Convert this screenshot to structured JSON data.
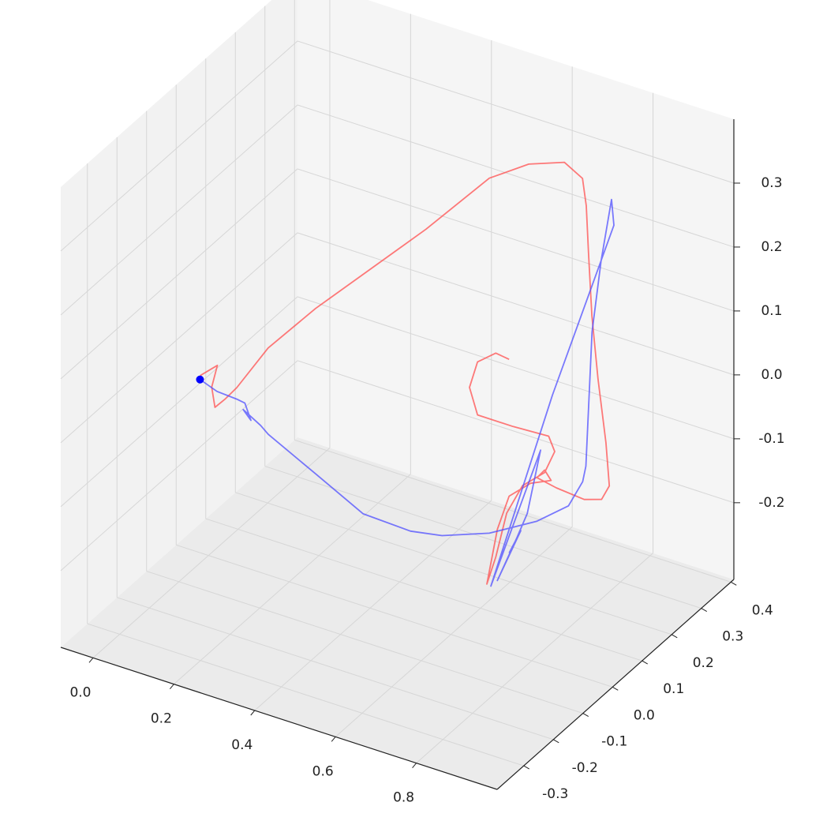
{
  "chart_data": {
    "type": "line3d",
    "xlim": [
      -0.08,
      1.0
    ],
    "ylim": [
      -0.39,
      0.41
    ],
    "zlim": [
      -0.32,
      0.4
    ],
    "xticks": [
      {
        "value": 0,
        "label": "0.0"
      },
      0.2,
      0.4,
      0.6,
      0.8
    ],
    "yticks": [
      -0.3,
      -0.2,
      -0.1,
      {
        "value": 0,
        "label": "0.0"
      },
      0.1,
      0.2,
      0.3,
      0.4
    ],
    "zticks": [
      -0.2,
      -0.1,
      {
        "value": 0,
        "label": "0.0"
      },
      0.1,
      0.2,
      0.3
    ],
    "grid": true,
    "series": [
      {
        "color": "#ff4d4d",
        "x": [
          -0.021,
          0.022,
          0.008,
          0.016,
          0.041,
          0.07,
          0.111,
          0.192,
          0.292,
          0.392,
          0.512,
          0.573,
          0.661,
          0.706,
          0.752,
          0.794,
          0.839,
          0.891,
          0.947,
          0.992,
          0.973,
          0.93,
          0.861,
          0.813,
          0.832,
          0.848,
          0.797,
          0.744,
          0.715,
          0.689,
          0.711,
          0.738,
          0.777,
          0.832,
          0.857,
          0.842,
          0.754,
          0.666,
          0.646,
          0.666,
          0.711,
          0.744
        ],
        "y": [
          0,
          0,
          0,
          0,
          0,
          0,
          0.05,
          0.1,
          0.15,
          0.2,
          0.25,
          0.3,
          0.3,
          0.3,
          0.25,
          0.2,
          0.15,
          0.1,
          0.05,
          0,
          0,
          0,
          0,
          0,
          0,
          0,
          0,
          0,
          0,
          0,
          0,
          0,
          0,
          0,
          0,
          0,
          0,
          0,
          0,
          0,
          0,
          0
        ],
        "z": [
          -0.043,
          -0.018,
          -0.055,
          -0.085,
          -0.067,
          -0.043,
          0.007,
          0.065,
          0.127,
          0.189,
          0.273,
          0.287,
          0.308,
          0.292,
          0.279,
          0.235,
          0.166,
          0.098,
          0.031,
          -0.007,
          -0.032,
          -0.041,
          -0.037,
          -0.031,
          -0.015,
          -0.028,
          -0.043,
          -0.074,
          -0.132,
          -0.223,
          -0.176,
          -0.102,
          -0.051,
          -0.019,
          0.019,
          0.04,
          0.037,
          0.037,
          0.076,
          0.12,
          0.143,
          0.14
        ]
      },
      {
        "color": "#4d4dff",
        "x": [
          -0.021,
          0.021,
          0.07,
          0.09,
          0.105,
          0.086,
          0.129,
          0.148,
          0.266,
          0.383,
          0.5,
          0.578,
          0.695,
          0.813,
          0.891,
          0.926,
          0.934,
          0.902,
          0.876,
          0.862,
          0.851,
          0.857,
          0.778,
          0.699,
          0.822,
          0.789,
          0.764,
          0.715,
          0.773,
          0.744
        ],
        "y": [
          0,
          0,
          0,
          0,
          0,
          0,
          0,
          0,
          0,
          0,
          0,
          0,
          0,
          0,
          0,
          0,
          0,
          0.05,
          0.1,
          0.15,
          0.2,
          0.2,
          0.1,
          0,
          0,
          0,
          0,
          0,
          0,
          0
        ],
        "z": [
          -0.049,
          -0.059,
          -0.061,
          -0.063,
          -0.087,
          -0.074,
          -0.09,
          -0.1,
          -0.138,
          -0.176,
          -0.179,
          -0.17,
          -0.142,
          -0.099,
          -0.059,
          -0.014,
          0.012,
          0.047,
          0.169,
          0.257,
          0.33,
          0.291,
          0.05,
          -0.224,
          0.014,
          -0.092,
          -0.134,
          -0.212,
          -0.122,
          -0.163
        ]
      }
    ],
    "markers": {
      "color": "#0000ff",
      "x": [
        -0.021
      ],
      "y": [
        0
      ],
      "z": [
        -0.049
      ]
    }
  }
}
